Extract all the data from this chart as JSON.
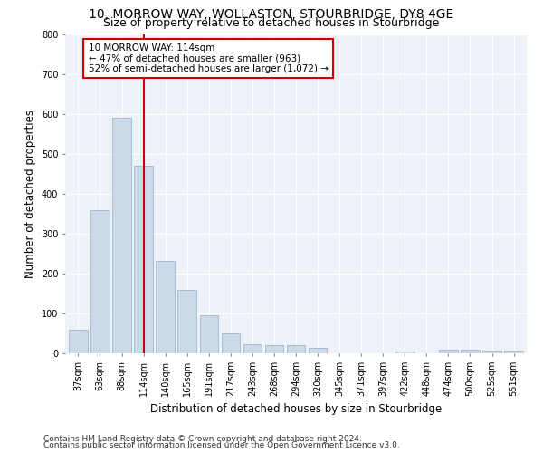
{
  "title": "10, MORROW WAY, WOLLASTON, STOURBRIDGE, DY8 4GE",
  "subtitle": "Size of property relative to detached houses in Stourbridge",
  "xlabel": "Distribution of detached houses by size in Stourbridge",
  "ylabel": "Number of detached properties",
  "categories": [
    "37sqm",
    "63sqm",
    "88sqm",
    "114sqm",
    "140sqm",
    "165sqm",
    "191sqm",
    "217sqm",
    "243sqm",
    "268sqm",
    "294sqm",
    "320sqm",
    "345sqm",
    "371sqm",
    "397sqm",
    "422sqm",
    "448sqm",
    "474sqm",
    "500sqm",
    "525sqm",
    "551sqm"
  ],
  "values": [
    60,
    358,
    590,
    470,
    232,
    160,
    96,
    50,
    22,
    20,
    20,
    14,
    0,
    0,
    0,
    5,
    0,
    10,
    10,
    6,
    6
  ],
  "bar_color": "#ccd9e8",
  "bar_edge_color": "#a0b8cc",
  "marker_index": 3,
  "marker_label": "10 MORROW WAY: 114sqm",
  "marker_line_color": "#cc0000",
  "annotation_line1": "← 47% of detached houses are smaller (963)",
  "annotation_line2": "52% of semi-detached houses are larger (1,072) →",
  "annotation_box_color": "#ffffff",
  "annotation_box_edge_color": "#cc0000",
  "ylim": [
    0,
    800
  ],
  "yticks": [
    0,
    100,
    200,
    300,
    400,
    500,
    600,
    700,
    800
  ],
  "footer1": "Contains HM Land Registry data © Crown copyright and database right 2024.",
  "footer2": "Contains public sector information licensed under the Open Government Licence v3.0.",
  "bg_color": "#eef2f8",
  "plot_bg_color": "#eef2f8",
  "title_fontsize": 10,
  "subtitle_fontsize": 9,
  "axis_label_fontsize": 8.5,
  "tick_fontsize": 7,
  "footer_fontsize": 6.5,
  "annotation_fontsize": 7.5
}
